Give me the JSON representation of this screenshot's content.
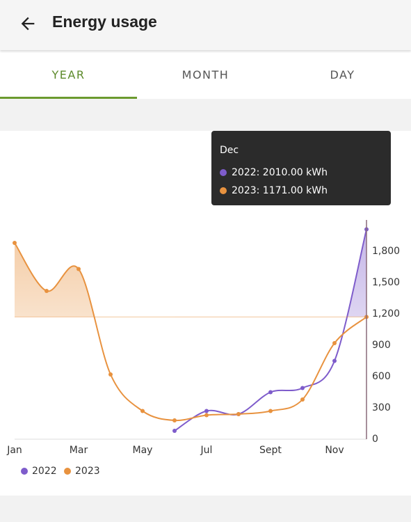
{
  "header": {
    "title": "Energy usage"
  },
  "tabs": [
    "YEAR",
    "MONTH",
    "DAY"
  ],
  "chart_data": {
    "type": "line",
    "categories": [
      "Jan",
      null,
      "Mar",
      null,
      "May",
      null,
      "Jul",
      null,
      "Sept",
      null,
      "Nov",
      null
    ],
    "series": [
      {
        "name": "2022",
        "color": "#7e5ccb",
        "values": [
          null,
          null,
          null,
          null,
          null,
          80,
          270,
          240,
          450,
          490,
          750,
          2010
        ]
      },
      {
        "name": "2023",
        "color": "#e8923f",
        "values": [
          1880,
          1420,
          1630,
          620,
          270,
          180,
          230,
          240,
          270,
          380,
          920,
          1171
        ]
      }
    ],
    "ylim": [
      0,
      2100
    ],
    "yticks": [
      0,
      300,
      600,
      900,
      {
        "value": 1200,
        "label": "1,200"
      },
      {
        "value": 1500,
        "label": "1,500"
      },
      {
        "value": 1800,
        "label": "1,800"
      }
    ],
    "grid": false,
    "tooltip": {
      "title": "Dec",
      "lines": [
        "2022: 2010.00 kWh",
        "2023: 1171.00 kWh"
      ]
    }
  }
}
